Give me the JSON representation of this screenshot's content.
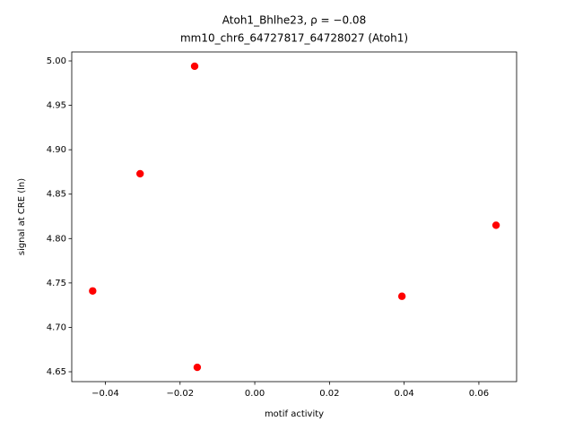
{
  "chart_data": {
    "type": "scatter",
    "title": "Atoh1_Bhlhe23, ρ = −0.08",
    "subtitle": "mm10_chr6_64727817_64728027 (Atoh1)",
    "x_label": "motif activity",
    "y_label": "signal at CRE (ln)",
    "color": "#ff0000",
    "x": [
      -0.0161,
      -0.0307,
      0.0646,
      -0.0434,
      0.0394,
      -0.0154
    ],
    "values": [
      4.994,
      4.873,
      4.815,
      4.741,
      4.735,
      4.655
    ],
    "xlim": [
      -0.049,
      0.0701
    ],
    "ylim": [
      4.6389,
      5.0101
    ],
    "xticks": [
      {
        "value": -0.04,
        "label": "−0.04"
      },
      {
        "value": -0.02,
        "label": "−0.02"
      },
      {
        "value": 0,
        "label": "0.00"
      },
      {
        "value": 0.02,
        "label": "0.02"
      },
      {
        "value": 0.04,
        "label": "0.04"
      },
      {
        "value": 0.06,
        "label": "0.06"
      }
    ],
    "yticks": [
      {
        "value": 4.65,
        "label": "4.65"
      },
      {
        "value": 4.7,
        "label": "4.70"
      },
      {
        "value": 4.75,
        "label": "4.75"
      },
      {
        "value": 4.8,
        "label": "4.80"
      },
      {
        "value": 4.85,
        "label": "4.85"
      },
      {
        "value": 4.9,
        "label": "4.90"
      },
      {
        "value": 4.95,
        "label": "4.95"
      },
      {
        "value": 5.0,
        "label": "5.00"
      }
    ],
    "grid": false
  }
}
